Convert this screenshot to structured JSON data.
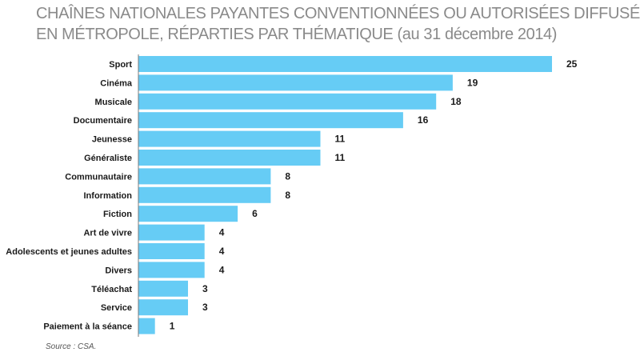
{
  "header": {
    "title_line1": "CHAÎNES NATIONALES PAYANTES CONVENTIONNÉES OU AUTORISÉES DIFFUSÉES",
    "title_line2": "EN MÉTROPOLE, RÉPARTIES PAR THÉMATIQUE (au 31 décembre 2014)"
  },
  "footer": {
    "source": "Source : CSA."
  },
  "chart_data": {
    "type": "bar",
    "orientation": "horizontal",
    "title": "CHAÎNES NATIONALES PAYANTES CONVENTIONNÉES OU AUTORISÉES DIFFUSÉES EN MÉTROPOLE, RÉPARTIES PAR THÉMATIQUE (au 31 décembre 2014)",
    "categories": [
      "Sport",
      "Cinéma",
      "Musicale",
      "Documentaire",
      "Jeunesse",
      "Généraliste",
      "Communautaire",
      "Information",
      "Fiction",
      "Art de vivre",
      "Adolescents et jeunes adultes",
      "Divers",
      "Téléachat",
      "Service",
      "Paiement à la séance"
    ],
    "values": [
      25,
      19,
      18,
      16,
      11,
      11,
      8,
      8,
      6,
      4,
      4,
      4,
      3,
      3,
      1
    ],
    "xlim": [
      0,
      25
    ],
    "grid": false,
    "legend": "none",
    "colors": {
      "bar": "#66ccf5",
      "label": "#1a1a1a"
    }
  }
}
